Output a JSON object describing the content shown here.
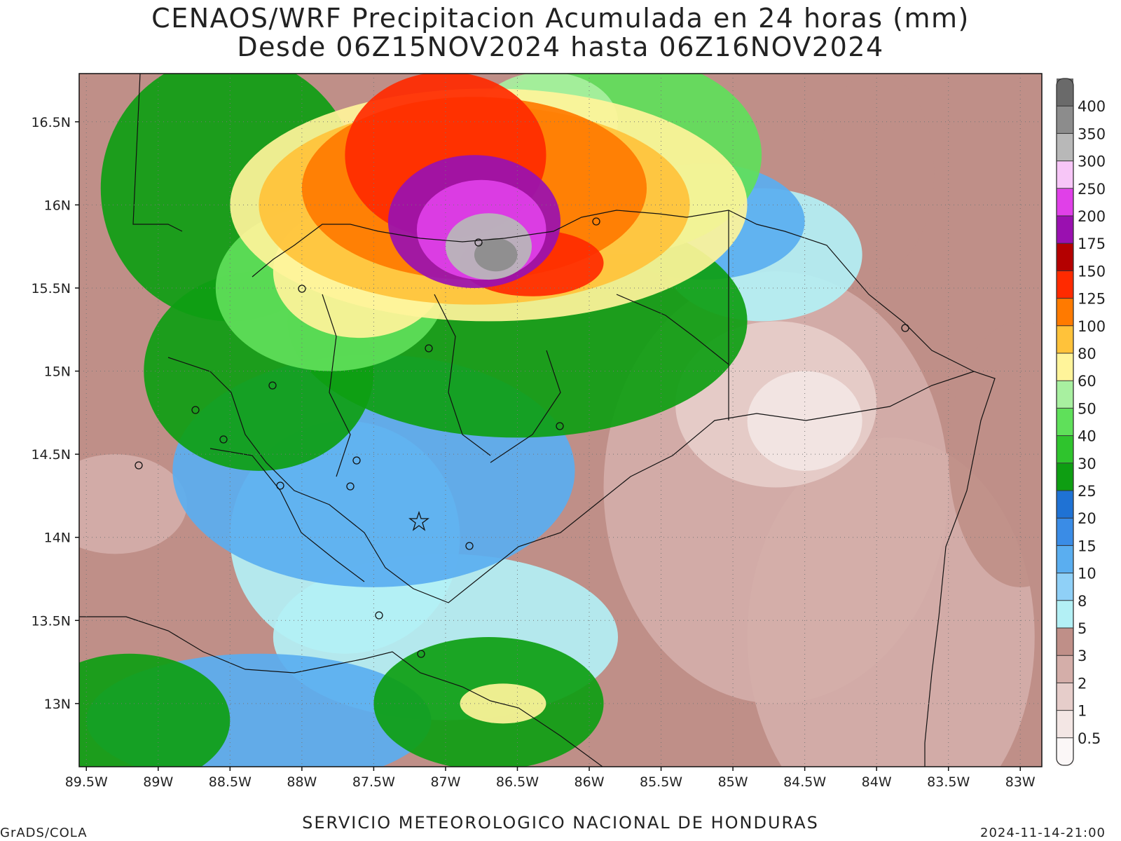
{
  "title_line1": "CENAOS/WRF Precipitacion Acumulada en 24 horas (mm)",
  "title_line2": "Desde 06Z15NOV2024 hasta 06Z16NOV2024",
  "footer_left": "GrADS/COLA",
  "footer_center": "SERVICIO METEOROLOGICO NACIONAL DE HONDURAS",
  "footer_right": "2024-11-14-21:00",
  "map": {
    "lon_labels": [
      "89.5W",
      "89W",
      "88.5W",
      "88W",
      "87.5W",
      "87W",
      "86.5W",
      "86W",
      "85.5W",
      "85W",
      "84.5W",
      "84W",
      "83.5W",
      "83W"
    ],
    "lon_values": [
      -89.5,
      -89,
      -88.5,
      -88,
      -87.5,
      -87,
      -86.5,
      -86,
      -85.5,
      -85,
      -84.5,
      -84,
      -83.5,
      -83
    ],
    "lat_labels": [
      "16.5N",
      "16N",
      "15.5N",
      "15N",
      "14.5N",
      "14N",
      "13.5N",
      "13N"
    ],
    "lat_values": [
      16.5,
      16,
      15.5,
      15,
      14.5,
      14,
      13.5,
      13
    ],
    "lon_range": [
      -89.55,
      -82.85
    ],
    "lat_range": [
      12.62,
      16.79
    ]
  },
  "colorbar": {
    "levels": [
      "0.5",
      "1",
      "2",
      "3",
      "5",
      "8",
      "10",
      "15",
      "20",
      "25",
      "30",
      "40",
      "50",
      "60",
      "80",
      "100",
      "125",
      "150",
      "175",
      "200",
      "250",
      "300",
      "350",
      "400"
    ],
    "colors": [
      "#fbf7f7",
      "#f3e6e4",
      "#e6cdca",
      "#d4aea9",
      "#bf8f88",
      "#b3f0f5",
      "#8fd0f7",
      "#5aaef0",
      "#3a8ce6",
      "#1f72d4",
      "#0e9e12",
      "#2fc42d",
      "#5fe05a",
      "#a8f0a0",
      "#fff49a",
      "#ffc23a",
      "#ff7a00",
      "#ff2a00",
      "#b40000",
      "#9a10b0",
      "#e040e8",
      "#f7c6f7",
      "#b8b8b8",
      "#8c8c8c",
      "#6a6a6a"
    ]
  },
  "precip_areas": [
    {
      "level": 4,
      "lon": -86.4,
      "lat": 14.2,
      "rlon": 1.6,
      "rlat": 0.9
    },
    {
      "level": 4,
      "lon": -88.7,
      "lat": 13.5,
      "rlon": 1.0,
      "rlat": 0.6
    },
    {
      "level": 3,
      "lon": -84.7,
      "lat": 14.3,
      "rlon": 1.2,
      "rlat": 1.3
    },
    {
      "level": 3,
      "lon": -83.9,
      "lat": 13.4,
      "rlon": 1.0,
      "rlat": 1.2
    },
    {
      "level": 2,
      "lon": -84.7,
      "lat": 14.8,
      "rlon": 0.7,
      "rlat": 0.5
    },
    {
      "level": 1,
      "lon": -84.5,
      "lat": 14.7,
      "rlon": 0.4,
      "rlat": 0.3
    },
    {
      "level": 4,
      "lon": -83.0,
      "lat": 14.5,
      "rlon": 0.5,
      "rlat": 0.8
    },
    {
      "level": 4,
      "lon": -84.0,
      "lat": 16.2,
      "rlon": 0.4,
      "rlat": 0.6
    },
    {
      "level": 3,
      "lon": -89.3,
      "lat": 14.2,
      "rlon": 0.5,
      "rlat": 0.3
    },
    {
      "level": 5,
      "lon": -84.8,
      "lat": 15.7,
      "rlon": 0.7,
      "rlat": 0.4
    },
    {
      "level": 5,
      "lon": -87.7,
      "lat": 14.0,
      "rlon": 0.8,
      "rlat": 0.7
    },
    {
      "level": 5,
      "lon": -87.0,
      "lat": 13.4,
      "rlon": 1.2,
      "rlat": 0.5
    },
    {
      "level": 7,
      "lon": -87.5,
      "lat": 14.4,
      "rlon": 1.4,
      "rlat": 0.7
    },
    {
      "level": 7,
      "lon": -85.2,
      "lat": 15.9,
      "rlon": 0.7,
      "rlat": 0.35
    },
    {
      "level": 7,
      "lon": -88.3,
      "lat": 12.9,
      "rlon": 1.2,
      "rlat": 0.4
    },
    {
      "level": 10,
      "lon": -86.5,
      "lat": 15.3,
      "rlon": 1.6,
      "rlat": 0.7
    },
    {
      "level": 10,
      "lon": -88.3,
      "lat": 15.0,
      "rlon": 0.8,
      "rlat": 0.6
    },
    {
      "level": 10,
      "lon": -88.5,
      "lat": 16.1,
      "rlon": 0.9,
      "rlat": 0.8
    },
    {
      "level": 10,
      "lon": -86.7,
      "lat": 13.0,
      "rlon": 0.8,
      "rlat": 0.4
    },
    {
      "level": 10,
      "lon": -89.2,
      "lat": 12.9,
      "rlon": 0.7,
      "rlat": 0.4
    },
    {
      "level": 12,
      "lon": -85.8,
      "lat": 16.3,
      "rlon": 1.0,
      "rlat": 0.6
    },
    {
      "level": 12,
      "lon": -87.8,
      "lat": 15.5,
      "rlon": 0.8,
      "rlat": 0.5
    },
    {
      "level": 13,
      "lon": -86.3,
      "lat": 16.5,
      "rlon": 0.5,
      "rlat": 0.3
    },
    {
      "level": 14,
      "lon": -86.7,
      "lat": 16.0,
      "rlon": 1.8,
      "rlat": 0.7
    },
    {
      "level": 14,
      "lon": -87.6,
      "lat": 15.6,
      "rlon": 0.6,
      "rlat": 0.4
    },
    {
      "level": 14,
      "lon": -86.6,
      "lat": 13.0,
      "rlon": 0.3,
      "rlat": 0.12
    },
    {
      "level": 15,
      "lon": -86.8,
      "lat": 16.0,
      "rlon": 1.5,
      "rlat": 0.6
    },
    {
      "level": 16,
      "lon": -86.8,
      "lat": 16.1,
      "rlon": 1.2,
      "rlat": 0.55
    },
    {
      "level": 17,
      "lon": -87.0,
      "lat": 16.3,
      "rlon": 0.7,
      "rlat": 0.5
    },
    {
      "level": 17,
      "lon": -86.4,
      "lat": 15.65,
      "rlon": 0.5,
      "rlat": 0.2
    },
    {
      "level": 19,
      "lon": -86.8,
      "lat": 15.9,
      "rlon": 0.6,
      "rlat": 0.4
    },
    {
      "level": 20,
      "lon": -86.75,
      "lat": 15.85,
      "rlon": 0.45,
      "rlat": 0.3
    },
    {
      "level": 22,
      "lon": -86.7,
      "lat": 15.75,
      "rlon": 0.3,
      "rlat": 0.2
    },
    {
      "level": 23,
      "lon": -86.65,
      "lat": 15.7,
      "rlon": 0.15,
      "rlat": 0.1
    }
  ]
}
